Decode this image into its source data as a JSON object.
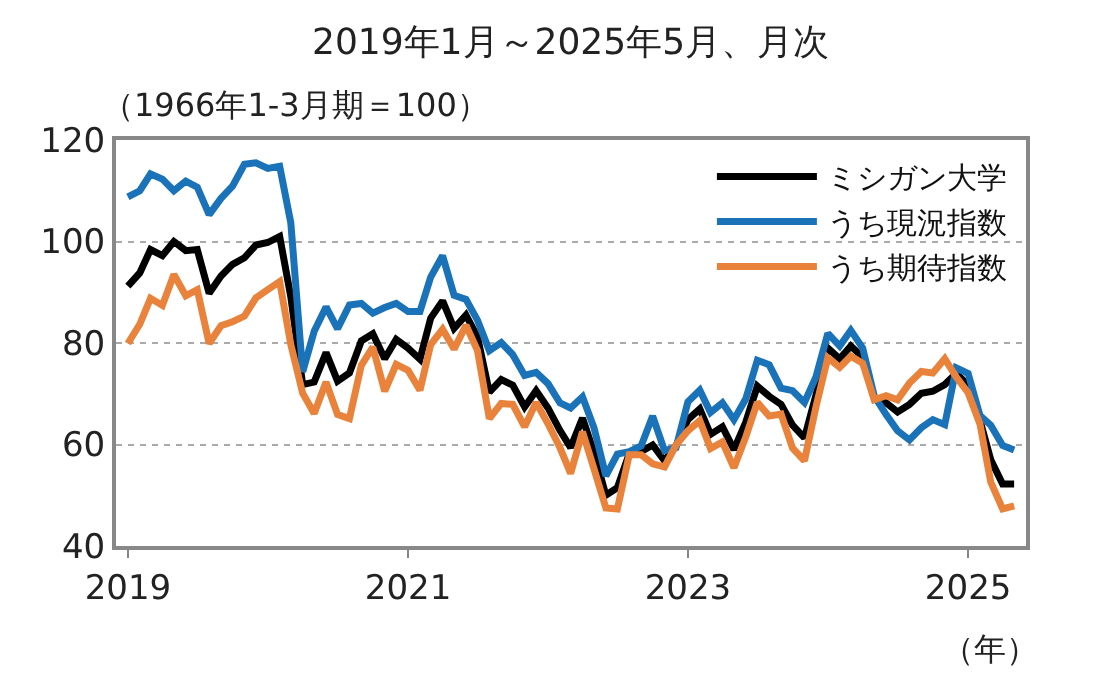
{
  "chart_data": {
    "type": "line",
    "title": "2019年1月～2025年5月、月次",
    "subtitle": "（1966年1-3月期＝100）",
    "annotations": [
      "（年）"
    ],
    "x": [
      "2019-01",
      "2019-02",
      "2019-03",
      "2019-04",
      "2019-05",
      "2019-06",
      "2019-07",
      "2019-08",
      "2019-09",
      "2019-10",
      "2019-11",
      "2019-12",
      "2020-01",
      "2020-02",
      "2020-03",
      "2020-04",
      "2020-05",
      "2020-06",
      "2020-07",
      "2020-08",
      "2020-09",
      "2020-10",
      "2020-11",
      "2020-12",
      "2021-01",
      "2021-02",
      "2021-03",
      "2021-04",
      "2021-05",
      "2021-06",
      "2021-07",
      "2021-08",
      "2021-09",
      "2021-10",
      "2021-11",
      "2021-12",
      "2022-01",
      "2022-02",
      "2022-03",
      "2022-04",
      "2022-05",
      "2022-06",
      "2022-07",
      "2022-08",
      "2022-09",
      "2022-10",
      "2022-11",
      "2022-12",
      "2023-01",
      "2023-02",
      "2023-03",
      "2023-04",
      "2023-05",
      "2023-06",
      "2023-07",
      "2023-08",
      "2023-09",
      "2023-10",
      "2023-11",
      "2023-12",
      "2024-01",
      "2024-02",
      "2024-03",
      "2024-04",
      "2024-05",
      "2024-06",
      "2024-07",
      "2024-08",
      "2024-09",
      "2024-10",
      "2024-11",
      "2024-12",
      "2025-01",
      "2025-02",
      "2025-03",
      "2025-04",
      "2025-05"
    ],
    "xlim": [
      "2018-12",
      "2025-06"
    ],
    "xticks": [
      {
        "value": "2019-01",
        "label": "2019"
      },
      {
        "value": "2021-01",
        "label": "2021"
      },
      {
        "value": "2023-01",
        "label": "2023"
      },
      {
        "value": "2025-01",
        "label": "2025"
      }
    ],
    "ylim": [
      40,
      120
    ],
    "yticks": [
      40,
      60,
      80,
      100,
      120
    ],
    "grid": "y",
    "legend": "top right",
    "marker": "none",
    "line_style": "solid",
    "series": [
      {
        "name": "ミシガン大学",
        "color": "#000000",
        "values": [
          91.2,
          93.8,
          98.4,
          97.2,
          100.0,
          98.2,
          98.4,
          89.8,
          93.2,
          95.5,
          96.8,
          99.3,
          99.8,
          101.0,
          89.1,
          71.8,
          72.3,
          78.1,
          72.5,
          74.1,
          80.4,
          81.8,
          76.9,
          80.7,
          79.0,
          76.8,
          84.9,
          88.3,
          82.9,
          85.5,
          81.2,
          70.3,
          72.8,
          71.7,
          67.4,
          70.6,
          67.2,
          62.8,
          59.4,
          65.2,
          58.4,
          50.0,
          51.5,
          58.2,
          58.6,
          59.9,
          56.8,
          59.7,
          64.9,
          67.0,
          62.0,
          63.5,
          59.0,
          64.4,
          71.5,
          69.5,
          67.9,
          63.8,
          61.3,
          69.7,
          79.0,
          76.9,
          79.4,
          77.2,
          69.1,
          68.2,
          66.4,
          67.9,
          70.1,
          70.5,
          71.8,
          74.0,
          71.7,
          64.7,
          57.0,
          52.2,
          52.2
        ]
      },
      {
        "name": "うち現況指数",
        "color": "#1a72b9",
        "values": [
          108.8,
          110.0,
          113.3,
          112.3,
          110.0,
          111.9,
          110.7,
          105.3,
          108.5,
          110.9,
          115.2,
          115.5,
          114.4,
          114.8,
          103.7,
          74.3,
          82.3,
          87.1,
          82.8,
          87.5,
          87.8,
          85.9,
          87.0,
          87.8,
          86.2,
          86.2,
          93.0,
          97.2,
          89.4,
          88.6,
          84.5,
          78.5,
          80.1,
          77.7,
          73.6,
          74.2,
          72.0,
          68.2,
          67.2,
          69.4,
          63.3,
          53.8,
          58.1,
          58.6,
          59.7,
          65.6,
          58.8,
          59.4,
          68.4,
          70.7,
          66.3,
          68.2,
          64.9,
          69.0,
          76.6,
          75.7,
          71.1,
          70.6,
          68.3,
          73.3,
          81.9,
          79.4,
          82.5,
          79.0,
          69.6,
          65.9,
          62.7,
          60.9,
          63.3,
          64.9,
          63.9,
          75.1,
          74.0,
          65.7,
          63.8,
          59.8,
          58.9
        ]
      },
      {
        "name": "うち期待指数",
        "color": "#e9833b",
        "values": [
          79.9,
          83.7,
          88.8,
          87.4,
          93.5,
          89.3,
          90.5,
          79.9,
          83.4,
          84.2,
          85.3,
          88.9,
          90.5,
          92.1,
          79.7,
          70.1,
          66.1,
          72.3,
          65.9,
          65.1,
          75.6,
          79.2,
          70.5,
          75.8,
          74.6,
          70.7,
          79.7,
          82.7,
          78.8,
          83.5,
          78.5,
          65.1,
          68.1,
          67.9,
          63.5,
          68.3,
          64.1,
          59.4,
          54.3,
          62.5,
          55.2,
          47.5,
          47.3,
          58.0,
          58.0,
          56.2,
          55.6,
          59.9,
          62.7,
          64.7,
          59.2,
          60.5,
          55.4,
          61.5,
          68.3,
          65.6,
          66.0,
          59.3,
          56.8,
          67.4,
          77.1,
          75.2,
          77.4,
          76.0,
          68.8,
          69.6,
          68.8,
          72.1,
          74.4,
          74.1,
          76.9,
          73.3,
          70.2,
          64.0,
          52.6,
          47.3,
          47.9
        ]
      }
    ]
  }
}
